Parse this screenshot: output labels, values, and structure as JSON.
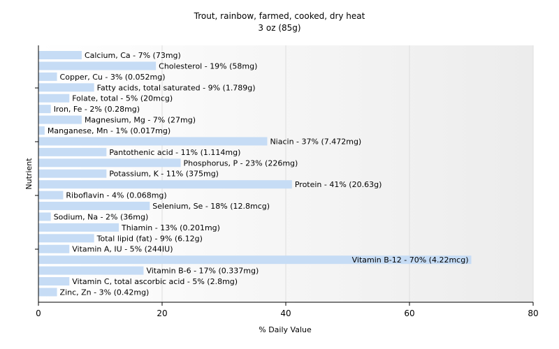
{
  "chart_data": {
    "type": "bar",
    "orientation": "horizontal",
    "title": "Trout, rainbow, farmed, cooked, dry heat",
    "subtitle": "3 oz (85g)",
    "xlabel": "% Daily Value",
    "ylabel": "Nutrient",
    "xlim": [
      0,
      80
    ],
    "xticks": [
      "0",
      "20",
      "40",
      "60",
      "80"
    ],
    "grid": true,
    "bar_color": "#c6dcf5",
    "categories": [
      "Calcium, Ca",
      "Cholesterol",
      "Copper, Cu",
      "Fatty acids, total saturated",
      "Folate, total",
      "Iron, Fe",
      "Magnesium, Mg",
      "Manganese, Mn",
      "Niacin",
      "Pantothenic acid",
      "Phosphorus, P",
      "Potassium, K",
      "Protein",
      "Riboflavin",
      "Selenium, Se",
      "Sodium, Na",
      "Thiamin",
      "Total lipid (fat)",
      "Vitamin A, IU",
      "Vitamin B-12",
      "Vitamin B-6",
      "Vitamin C, total ascorbic acid",
      "Zinc, Zn"
    ],
    "values": [
      7,
      19,
      3,
      9,
      5,
      2,
      7,
      1,
      37,
      11,
      23,
      11,
      41,
      4,
      18,
      2,
      13,
      9,
      5,
      70,
      17,
      5,
      3
    ],
    "labels": [
      "Calcium, Ca - 7% (73mg)",
      "Cholesterol - 19% (58mg)",
      "Copper, Cu - 3% (0.052mg)",
      "Fatty acids, total saturated - 9% (1.789g)",
      "Folate, total - 5% (20mcg)",
      "Iron, Fe - 2% (0.28mg)",
      "Magnesium, Mg - 7% (27mg)",
      "Manganese, Mn - 1% (0.017mg)",
      "Niacin - 37% (7.472mg)",
      "Pantothenic acid - 11% (1.114mg)",
      "Phosphorus, P - 23% (226mg)",
      "Potassium, K - 11% (375mg)",
      "Protein - 41% (20.63g)",
      "Riboflavin - 4% (0.068mg)",
      "Selenium, Se - 18% (12.8mcg)",
      "Sodium, Na - 2% (36mg)",
      "Thiamin - 13% (0.201mg)",
      "Total lipid (fat) - 9% (6.12g)",
      "Vitamin A, IU - 5% (244IU)",
      "Vitamin B-12 - 70% (4.22mcg)",
      "Vitamin B-6 - 17% (0.337mg)",
      "Vitamin C, total ascorbic acid - 5% (2.8mg)",
      "Zinc, Zn - 3% (0.42mg)"
    ]
  }
}
